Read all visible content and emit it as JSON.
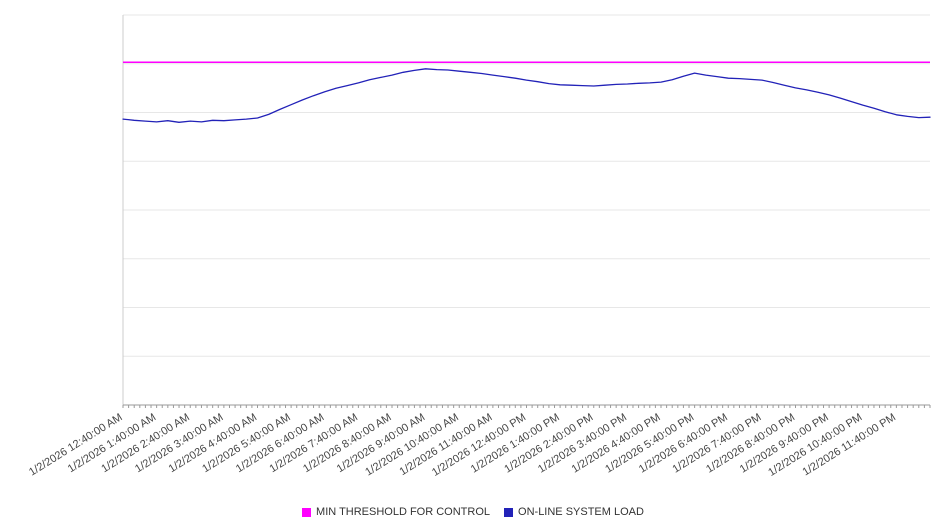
{
  "legend": {
    "items": [
      {
        "label": "MIN THRESHOLD FOR CONTROL",
        "color": "#ff00ff"
      },
      {
        "label": "ON-LINE SYSTEM LOAD",
        "color": "#2222b8"
      }
    ]
  },
  "chart_data": {
    "type": "line",
    "title": "",
    "xlabel": "",
    "ylabel": "",
    "ylim": [
      0,
      100
    ],
    "y_axis_labels": "none",
    "grid": "horizontal",
    "legend_position": "bottom-center",
    "x_span_hours": 24,
    "x_tick_labels": [
      "1/2/2026 12:40:00 AM",
      "1/2/2026 1:40:00 AM",
      "1/2/2026 2:40:00 AM",
      "1/2/2026 3:40:00 AM",
      "1/2/2026 4:40:00 AM",
      "1/2/2026 5:40:00 AM",
      "1/2/2026 6:40:00 AM",
      "1/2/2026 7:40:00 AM",
      "1/2/2026 8:40:00 AM",
      "1/2/2026 9:40:00 AM",
      "1/2/2026 10:40:00 AM",
      "1/2/2026 11:40:00 AM",
      "1/2/2026 12:40:00 PM",
      "1/2/2026 1:40:00 PM",
      "1/2/2026 2:40:00 PM",
      "1/2/2026 3:40:00 PM",
      "1/2/2026 4:40:00 PM",
      "1/2/2026 5:40:00 PM",
      "1/2/2026 6:40:00 PM",
      "1/2/2026 7:40:00 PM",
      "1/2/2026 8:40:00 PM",
      "1/2/2026 9:40:00 PM",
      "1/2/2026 10:40:00 PM",
      "1/2/2026 11:40:00 PM"
    ],
    "series": [
      {
        "name": "MIN THRESHOLD FOR CONTROL",
        "type": "threshold-line",
        "color": "#ff00ff",
        "value": 87.9
      },
      {
        "name": "ON-LINE SYSTEM LOAD",
        "type": "line",
        "color": "#2222b8",
        "x_start": "1/2/2026 12:40:00 AM",
        "x_step_minutes": 20,
        "values": [
          73.3,
          73.0,
          72.8,
          72.6,
          72.9,
          72.5,
          72.8,
          72.6,
          73.0,
          72.9,
          73.1,
          73.3,
          73.6,
          74.5,
          75.8,
          77.0,
          78.2,
          79.3,
          80.3,
          81.2,
          81.9,
          82.6,
          83.4,
          84.0,
          84.6,
          85.3,
          85.8,
          86.2,
          86.0,
          85.9,
          85.6,
          85.3,
          85.0,
          84.6,
          84.2,
          83.8,
          83.3,
          82.9,
          82.4,
          82.1,
          82.0,
          81.9,
          81.8,
          82.0,
          82.2,
          82.3,
          82.5,
          82.6,
          82.8,
          83.4,
          84.3,
          85.1,
          84.6,
          84.2,
          83.8,
          83.7,
          83.5,
          83.3,
          82.7,
          82.0,
          81.3,
          80.8,
          80.2,
          79.5,
          78.7,
          77.8,
          76.9,
          76.1,
          75.2,
          74.4,
          74.0,
          73.7,
          73.8
        ]
      }
    ]
  }
}
